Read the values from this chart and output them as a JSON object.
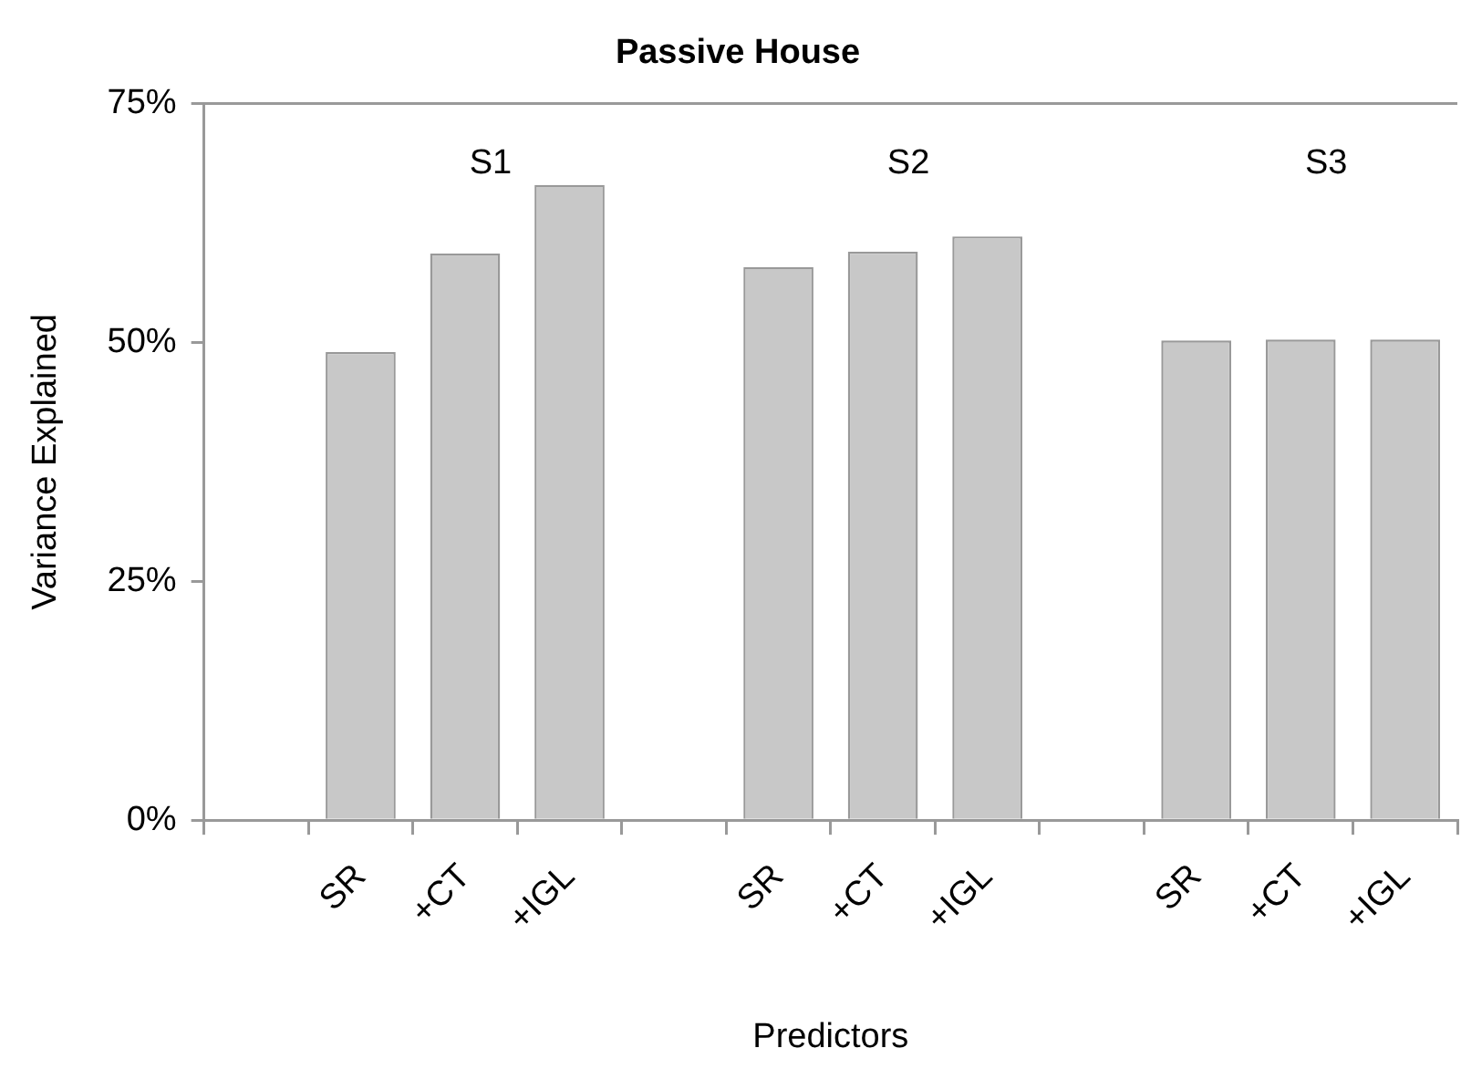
{
  "chart_data": {
    "type": "bar",
    "title": "Passive House",
    "xlabel": "Predictors",
    "ylabel": "Variance Explained",
    "categories": [
      null,
      "SR",
      "+CT",
      "+IGL",
      null,
      "SR",
      "+CT",
      "+IGL",
      null,
      "SR",
      "+CT",
      "+IGL"
    ],
    "values": [
      null,
      49.0,
      59.3,
      66.5,
      null,
      57.9,
      59.5,
      61.1,
      null,
      50.2,
      50.3,
      50.3
    ],
    "color": "#c8c8c8",
    "ylim": [
      0,
      75
    ],
    "yticks": [
      {
        "value": 0,
        "label": "0%"
      },
      {
        "value": 25,
        "label": "25%"
      },
      {
        "value": 50,
        "label": "50%"
      },
      {
        "value": 75,
        "label": "75%"
      }
    ],
    "annotations": [
      "S1",
      "S2",
      "S3"
    ],
    "grid": false,
    "legend": false
  }
}
